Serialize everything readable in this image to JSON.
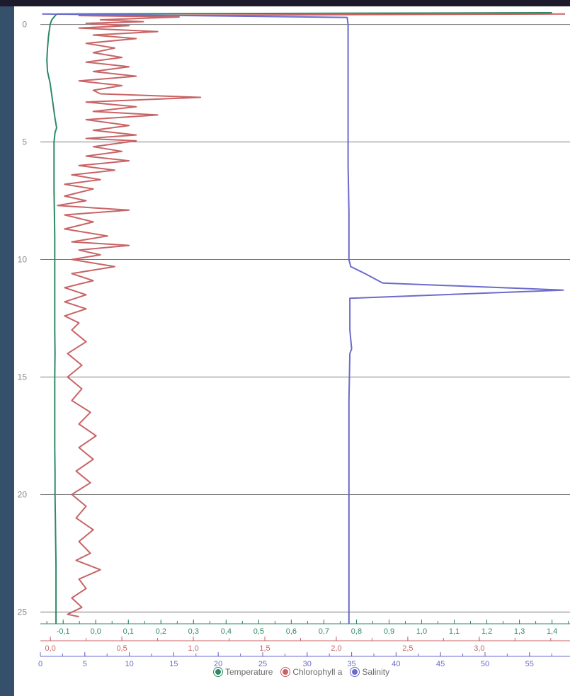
{
  "colors": {
    "temperature": "#2e8a64",
    "chlorophyll": "#c86466",
    "salinity": "#6b6bcc",
    "grid": "#7a7a7a"
  },
  "legend": [
    {
      "label": "Temperature",
      "color": "#2e8a64"
    },
    {
      "label": "Chlorophyll a",
      "color": "#c86466"
    },
    {
      "label": "Salinity",
      "color": "#6b6bcc"
    }
  ],
  "chart_data": {
    "type": "line",
    "orientation": "vertical-profile",
    "y_axis": {
      "ticks": [
        "0",
        "5",
        "10",
        "15",
        "20",
        "25"
      ],
      "values": [
        0,
        5,
        10,
        15,
        20,
        25
      ],
      "range": [
        -0.5,
        25.5
      ],
      "reversed": true
    },
    "x_axes": [
      {
        "series": "Temperature",
        "color": "#2e8a64",
        "ticks": [
          "-0,1",
          "0,0",
          "0,1",
          "0,2",
          "0,3",
          "0,4",
          "0,5",
          "0,6",
          "0,7",
          "0,8",
          "0,9",
          "1,0",
          "1,1",
          "1,2",
          "1,3",
          "1,4"
        ],
        "values": [
          -0.1,
          0,
          0.1,
          0.2,
          0.3,
          0.4,
          0.5,
          0.6,
          0.7,
          0.8,
          0.9,
          1.0,
          1.1,
          1.2,
          1.3,
          1.4
        ],
        "range": [
          -0.17,
          1.44
        ]
      },
      {
        "series": "Chlorophyll a",
        "color": "#c86466",
        "ticks": [
          "0,0",
          "0,5",
          "1,0",
          "1,5",
          "2,0",
          "2,5",
          "3,0"
        ],
        "values": [
          0,
          0.5,
          1.0,
          1.5,
          2.0,
          2.5,
          3.0
        ],
        "range": [
          -0.07,
          3.6
        ]
      },
      {
        "series": "Salinity",
        "color": "#6b6bcc",
        "ticks": [
          "0",
          "5",
          "10",
          "15",
          "20",
          "25",
          "30",
          "35",
          "40",
          "45",
          "50",
          "55"
        ],
        "values": [
          0,
          5,
          10,
          15,
          20,
          25,
          30,
          35,
          40,
          45,
          50,
          55
        ],
        "range": [
          0,
          59
        ]
      }
    ],
    "series": [
      {
        "name": "Temperature",
        "axis": 0,
        "points": [
          [
            1.4,
            -0.5
          ],
          [
            -0.12,
            -0.45
          ],
          [
            -0.135,
            -0.2
          ],
          [
            -0.14,
            0
          ],
          [
            -0.145,
            0.5
          ],
          [
            -0.148,
            1.0
          ],
          [
            -0.15,
            1.5
          ],
          [
            -0.148,
            2.0
          ],
          [
            -0.14,
            2.5
          ],
          [
            -0.135,
            3.0
          ],
          [
            -0.13,
            3.5
          ],
          [
            -0.125,
            4.0
          ],
          [
            -0.12,
            4.4
          ],
          [
            -0.125,
            4.6
          ],
          [
            -0.128,
            5.0
          ],
          [
            -0.128,
            6.0
          ],
          [
            -0.128,
            7.0
          ],
          [
            -0.127,
            8.0
          ],
          [
            -0.126,
            9.0
          ],
          [
            -0.126,
            10.0
          ],
          [
            -0.126,
            11.0
          ],
          [
            -0.126,
            12.0
          ],
          [
            -0.126,
            13.0
          ],
          [
            -0.125,
            14.0
          ],
          [
            -0.126,
            15.0
          ],
          [
            -0.126,
            16.0
          ],
          [
            -0.126,
            17.0
          ],
          [
            -0.126,
            18.0
          ],
          [
            -0.125,
            19.0
          ],
          [
            -0.125,
            20.0
          ],
          [
            -0.124,
            21.0
          ],
          [
            -0.123,
            22.0
          ],
          [
            -0.122,
            23.0
          ],
          [
            -0.122,
            24.0
          ],
          [
            -0.122,
            25.0
          ],
          [
            -0.122,
            25.5
          ]
        ]
      },
      {
        "name": "Chlorophyll a",
        "axis": 1,
        "points": [
          [
            3.6,
            -0.45
          ],
          [
            0.2,
            -0.38
          ],
          [
            0.9,
            -0.32
          ],
          [
            0.35,
            -0.2
          ],
          [
            0.65,
            -0.12
          ],
          [
            0.25,
            -0.05
          ],
          [
            0.55,
            0.05
          ],
          [
            0.2,
            0.15
          ],
          [
            0.75,
            0.3
          ],
          [
            0.3,
            0.45
          ],
          [
            0.6,
            0.6
          ],
          [
            0.25,
            0.8
          ],
          [
            0.45,
            1.0
          ],
          [
            0.3,
            1.2
          ],
          [
            0.5,
            1.4
          ],
          [
            0.25,
            1.6
          ],
          [
            0.55,
            1.8
          ],
          [
            0.3,
            2.0
          ],
          [
            0.6,
            2.2
          ],
          [
            0.2,
            2.4
          ],
          [
            0.5,
            2.6
          ],
          [
            0.3,
            2.8
          ],
          [
            0.35,
            2.95
          ],
          [
            1.05,
            3.1
          ],
          [
            0.25,
            3.3
          ],
          [
            0.6,
            3.5
          ],
          [
            0.3,
            3.7
          ],
          [
            0.75,
            3.85
          ],
          [
            0.25,
            4.05
          ],
          [
            0.55,
            4.3
          ],
          [
            0.3,
            4.5
          ],
          [
            0.6,
            4.7
          ],
          [
            0.25,
            4.85
          ],
          [
            0.6,
            4.95
          ],
          [
            0.3,
            5.2
          ],
          [
            0.5,
            5.4
          ],
          [
            0.25,
            5.6
          ],
          [
            0.55,
            5.8
          ],
          [
            0.2,
            6.0
          ],
          [
            0.45,
            6.2
          ],
          [
            0.15,
            6.4
          ],
          [
            0.35,
            6.6
          ],
          [
            0.1,
            6.8
          ],
          [
            0.3,
            7.0
          ],
          [
            0.1,
            7.3
          ],
          [
            0.25,
            7.5
          ],
          [
            0.05,
            7.7
          ],
          [
            0.55,
            7.9
          ],
          [
            0.1,
            8.1
          ],
          [
            0.3,
            8.4
          ],
          [
            0.1,
            8.7
          ],
          [
            0.4,
            9.0
          ],
          [
            0.15,
            9.25
          ],
          [
            0.55,
            9.4
          ],
          [
            0.2,
            9.6
          ],
          [
            0.35,
            9.8
          ],
          [
            0.15,
            10.0
          ],
          [
            0.45,
            10.3
          ],
          [
            0.15,
            10.6
          ],
          [
            0.3,
            10.9
          ],
          [
            0.1,
            11.2
          ],
          [
            0.25,
            11.5
          ],
          [
            0.1,
            11.8
          ],
          [
            0.25,
            12.1
          ],
          [
            0.1,
            12.4
          ],
          [
            0.2,
            12.7
          ],
          [
            0.15,
            13.0
          ],
          [
            0.25,
            13.5
          ],
          [
            0.12,
            14.0
          ],
          [
            0.22,
            14.5
          ],
          [
            0.12,
            15.0
          ],
          [
            0.22,
            15.5
          ],
          [
            0.15,
            16.0
          ],
          [
            0.28,
            16.5
          ],
          [
            0.2,
            17.0
          ],
          [
            0.32,
            17.5
          ],
          [
            0.2,
            18.0
          ],
          [
            0.3,
            18.5
          ],
          [
            0.18,
            19.0
          ],
          [
            0.28,
            19.5
          ],
          [
            0.15,
            20.0
          ],
          [
            0.25,
            20.5
          ],
          [
            0.18,
            21.0
          ],
          [
            0.3,
            21.5
          ],
          [
            0.2,
            22.0
          ],
          [
            0.28,
            22.5
          ],
          [
            0.18,
            22.8
          ],
          [
            0.35,
            23.2
          ],
          [
            0.2,
            23.6
          ],
          [
            0.25,
            24.0
          ],
          [
            0.15,
            24.4
          ],
          [
            0.22,
            24.8
          ],
          [
            0.12,
            25.1
          ],
          [
            0.2,
            25.2
          ]
        ]
      },
      {
        "name": "Salinity",
        "axis": 2,
        "points": [
          [
            0.2,
            -0.45
          ],
          [
            34.5,
            -0.3
          ],
          [
            34.6,
            0
          ],
          [
            34.6,
            2
          ],
          [
            34.6,
            4
          ],
          [
            34.6,
            6
          ],
          [
            34.7,
            8
          ],
          [
            34.7,
            10
          ],
          [
            34.9,
            10.3
          ],
          [
            36.5,
            10.6
          ],
          [
            38.5,
            11.0
          ],
          [
            58.8,
            11.3
          ],
          [
            34.8,
            11.65
          ],
          [
            34.8,
            12.0
          ],
          [
            34.8,
            13.0
          ],
          [
            35.0,
            13.8
          ],
          [
            34.8,
            14.0
          ],
          [
            34.7,
            16
          ],
          [
            34.7,
            18
          ],
          [
            34.7,
            20
          ],
          [
            34.7,
            22
          ],
          [
            34.7,
            24
          ],
          [
            34.7,
            25.5
          ]
        ]
      }
    ],
    "legend_placement": "bottom-center",
    "grid": {
      "horizontal": true,
      "vertical": false
    }
  }
}
